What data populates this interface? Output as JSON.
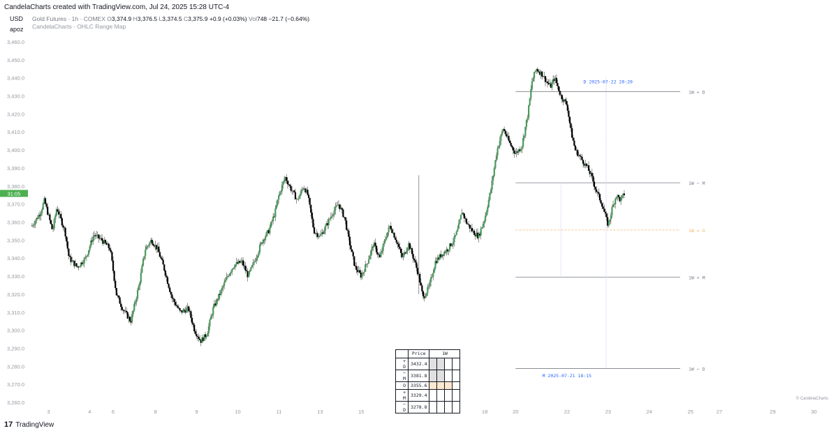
{
  "header": {
    "created_with": "CandelaCharts created with TradingView.com, Jul 24, 2025 15:28 UTC-4",
    "currency": "USD",
    "user": "apoz"
  },
  "legend": {
    "symbol": "Gold Futures · 1h · COMEX",
    "o_label": "O",
    "o_value": "3,374.9",
    "h_label": "H",
    "h_value": "3,376.5",
    "l_label": "L",
    "l_value": "3,374.5",
    "c_label": "C",
    "c_value": "3,375.9",
    "change": "+0.9 (+0.03%)",
    "vol_label": "Vol",
    "vol_value": "748",
    "vol_change": "−21.7 (−0.64%)",
    "indicator": "CandelaCharts - OHLC Range Map"
  },
  "price_badge": "31:05",
  "chart_data": {
    "type": "candlestick",
    "title": "",
    "y_axis_labels": [
      "3,460.0",
      "3,450.0",
      "3,440.0",
      "3,430.0",
      "3,420.0",
      "3,410.0",
      "3,400.0",
      "3,390.0",
      "3,380.0",
      "3,370.0",
      "3,360.0",
      "3,350.0",
      "3,340.0",
      "3,330.0",
      "3,320.0",
      "3,310.0",
      "3,300.0",
      "3,290.0",
      "3,280.0",
      "3,270.0",
      "3,260.0"
    ],
    "y_range": [
      3255,
      3465
    ],
    "x_range": [
      2.5,
      30.5
    ],
    "x_tick_labels": [
      {
        "label": "3",
        "x": 3
      },
      {
        "label": "4",
        "x": 4
      },
      {
        "label": "6",
        "x": 4.57
      },
      {
        "label": "8",
        "x": 5.6
      },
      {
        "label": "9",
        "x": 6.6
      },
      {
        "label": "10",
        "x": 7.6
      },
      {
        "label": "11",
        "x": 8.6
      },
      {
        "label": "13",
        "x": 9.6
      },
      {
        "label": "15",
        "x": 10.6
      },
      {
        "label": "16",
        "x": 11.6
      },
      {
        "label": "17",
        "x": 12.6
      },
      {
        "label": "18",
        "x": 13.6
      },
      {
        "label": "20",
        "x": 14.35
      },
      {
        "label": "22",
        "x": 15.6
      },
      {
        "label": "23",
        "x": 16.6
      },
      {
        "label": "24",
        "x": 17.6
      },
      {
        "label": "25",
        "x": 18.6
      },
      {
        "label": "27",
        "x": 19.3
      },
      {
        "label": "29",
        "x": 20.6
      },
      {
        "label": "30",
        "x": 21.6
      }
    ],
    "price_path": [
      [
        2.6,
        3358
      ],
      [
        2.8,
        3365
      ],
      [
        2.9,
        3372
      ],
      [
        3.1,
        3355
      ],
      [
        3.2,
        3368
      ],
      [
        3.4,
        3355
      ],
      [
        3.5,
        3340
      ],
      [
        3.7,
        3335
      ],
      [
        3.9,
        3340
      ],
      [
        4.1,
        3353
      ],
      [
        4.3,
        3350
      ],
      [
        4.5,
        3345
      ],
      [
        4.65,
        3320
      ],
      [
        4.8,
        3312
      ],
      [
        5.0,
        3305
      ],
      [
        5.2,
        3325
      ],
      [
        5.35,
        3345
      ],
      [
        5.5,
        3350
      ],
      [
        5.65,
        3345
      ],
      [
        5.8,
        3335
      ],
      [
        6.0,
        3318
      ],
      [
        6.2,
        3310
      ],
      [
        6.4,
        3312
      ],
      [
        6.55,
        3300
      ],
      [
        6.7,
        3294
      ],
      [
        6.85,
        3298
      ],
      [
        7.0,
        3312
      ],
      [
        7.2,
        3322
      ],
      [
        7.35,
        3330
      ],
      [
        7.5,
        3336
      ],
      [
        7.7,
        3338
      ],
      [
        7.85,
        3330
      ],
      [
        8.0,
        3338
      ],
      [
        8.2,
        3350
      ],
      [
        8.35,
        3355
      ],
      [
        8.5,
        3365
      ],
      [
        8.6,
        3375
      ],
      [
        8.75,
        3385
      ],
      [
        8.9,
        3378
      ],
      [
        9.05,
        3372
      ],
      [
        9.2,
        3380
      ],
      [
        9.3,
        3375
      ],
      [
        9.45,
        3355
      ],
      [
        9.6,
        3352
      ],
      [
        9.75,
        3358
      ],
      [
        9.9,
        3365
      ],
      [
        10.05,
        3370
      ],
      [
        10.2,
        3362
      ],
      [
        10.3,
        3350
      ],
      [
        10.45,
        3335
      ],
      [
        10.6,
        3330
      ],
      [
        10.75,
        3338
      ],
      [
        10.9,
        3348
      ],
      [
        11.05,
        3340
      ],
      [
        11.2,
        3352
      ],
      [
        11.3,
        3358
      ],
      [
        11.45,
        3350
      ],
      [
        11.6,
        3340
      ],
      [
        11.75,
        3348
      ],
      [
        11.9,
        3338
      ],
      [
        12.0,
        3330
      ],
      [
        12.1,
        3318
      ],
      [
        12.25,
        3324
      ],
      [
        12.4,
        3338
      ],
      [
        12.55,
        3342
      ],
      [
        12.7,
        3345
      ],
      [
        12.85,
        3350
      ],
      [
        12.95,
        3356
      ],
      [
        13.05,
        3366
      ],
      [
        13.15,
        3360
      ],
      [
        13.3,
        3355
      ],
      [
        13.45,
        3352
      ],
      [
        13.6,
        3362
      ],
      [
        13.75,
        3378
      ],
      [
        13.9,
        3400
      ],
      [
        14.05,
        3412
      ],
      [
        14.2,
        3404
      ],
      [
        14.35,
        3398
      ],
      [
        14.5,
        3402
      ],
      [
        14.65,
        3420
      ],
      [
        14.75,
        3438
      ],
      [
        14.85,
        3445
      ],
      [
        15.0,
        3442
      ],
      [
        15.1,
        3438
      ],
      [
        15.2,
        3435
      ],
      [
        15.3,
        3440
      ],
      [
        15.45,
        3430
      ],
      [
        15.6,
        3425
      ],
      [
        15.7,
        3410
      ],
      [
        15.8,
        3400
      ],
      [
        15.95,
        3395
      ],
      [
        16.1,
        3390
      ],
      [
        16.2,
        3385
      ],
      [
        16.3,
        3378
      ],
      [
        16.45,
        3370
      ],
      [
        16.6,
        3358
      ],
      [
        16.7,
        3368
      ],
      [
        16.8,
        3375
      ],
      [
        16.9,
        3372
      ],
      [
        17.0,
        3376
      ]
    ]
  },
  "levels": [
    {
      "price": 3432.4,
      "label": "1W + D",
      "style": "solid",
      "color": "#787b86"
    },
    {
      "price": 3381.8,
      "label": "1W − M",
      "style": "solid",
      "color": "#787b86"
    },
    {
      "price": 3355.6,
      "label": "1W = O",
      "style": "dashed",
      "color": "#f2b46a"
    },
    {
      "price": 3329.4,
      "label": "1W + M",
      "style": "solid",
      "color": "#787b86"
    },
    {
      "price": 3278.8,
      "label": "1W − D",
      "style": "solid",
      "color": "#787b86"
    }
  ],
  "annotations": {
    "d_marker": "D 2025-07-22 20:20",
    "m_marker": "M 2025-07-21 18:15"
  },
  "range_table": {
    "header_price": "Price",
    "header_period": "1W",
    "rows": [
      {
        "label": "+ D",
        "price": "3432.4"
      },
      {
        "label": "− M",
        "price": "3381.8"
      },
      {
        "label": "O",
        "price": "3355.6"
      },
      {
        "label": "+ M",
        "price": "3329.4"
      },
      {
        "label": "− D",
        "price": "3278.8"
      }
    ]
  },
  "footer": {
    "watermark": "© CandelaCharts",
    "brand": "TradingView"
  },
  "colors": {
    "up": "#4a9a5b",
    "down": "#000000",
    "grid_text": "#9598a1",
    "badge": "#4caf50",
    "annotation": "#2962ff",
    "open_level": "#f2b46a"
  }
}
